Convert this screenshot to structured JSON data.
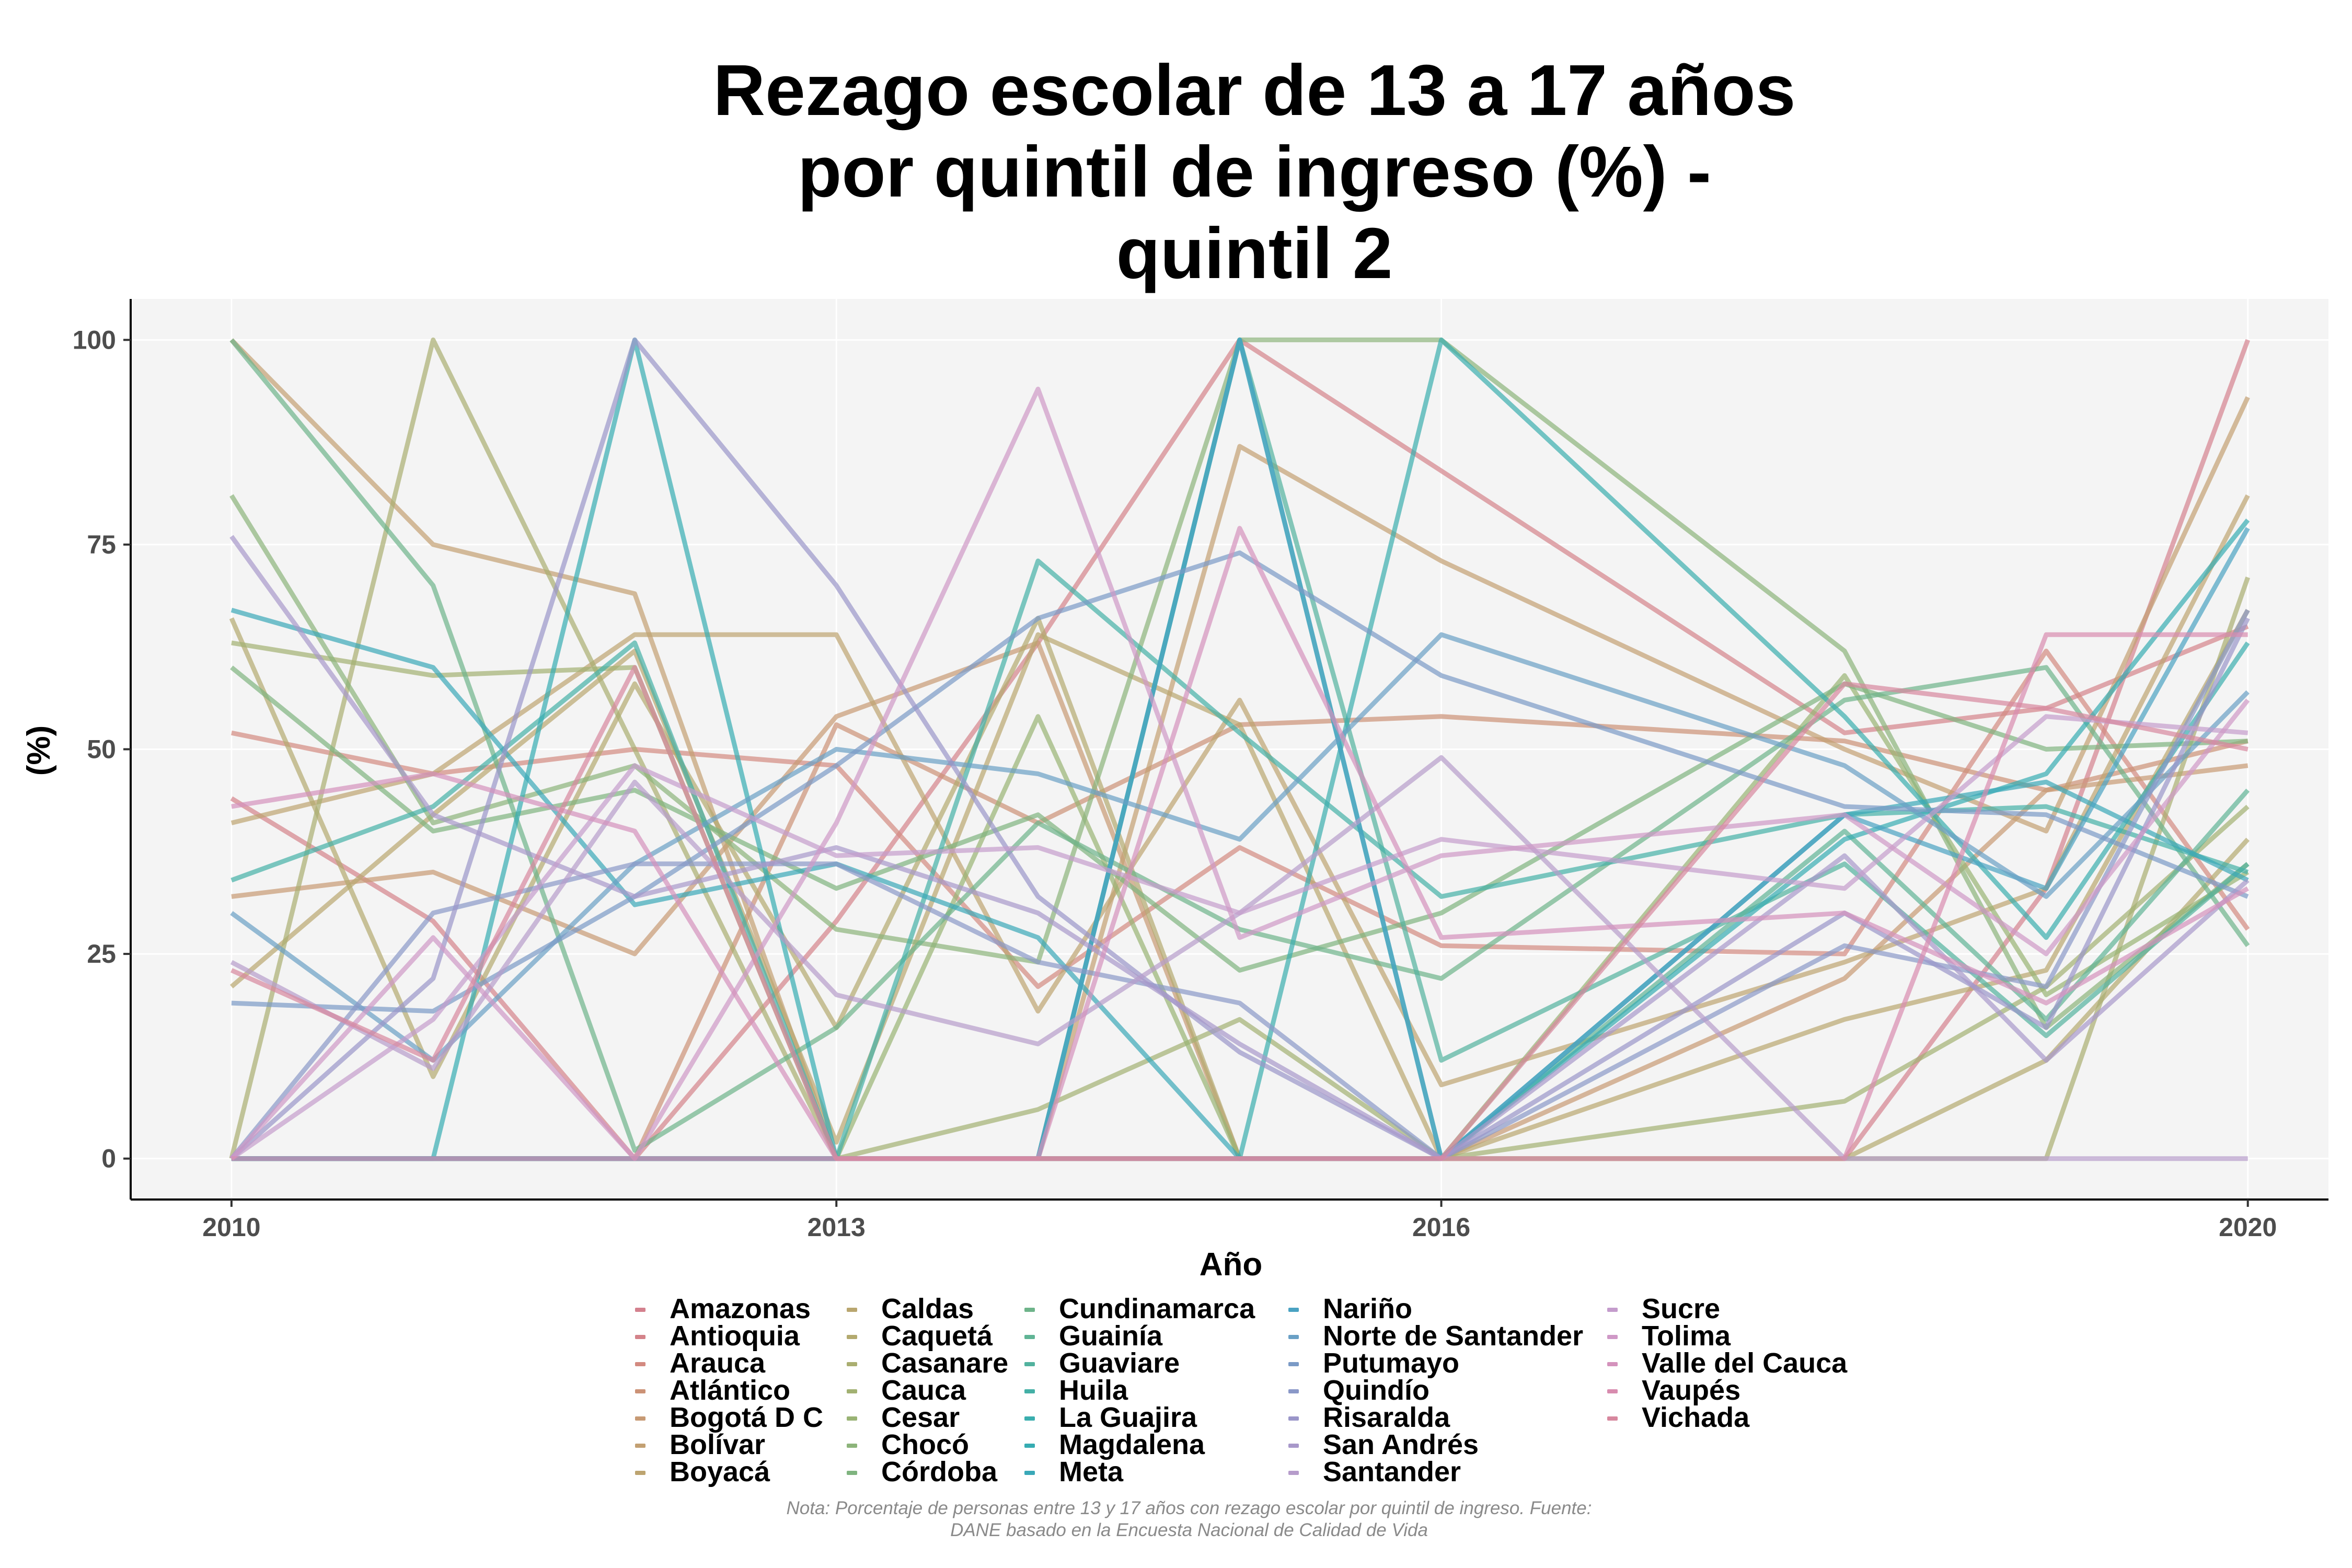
{
  "title_lines": [
    "Rezago escolar de 13 a 17 años",
    "por quintil de ingreso (%) -",
    "quintil 2"
  ],
  "note_lines": [
    "Nota: Porcentaje de personas entre 13 y 17 años con rezago escolar por quintil de ingreso. Fuente:",
    "DANE basado en la Encuesta Nacional de Calidad de Vida"
  ],
  "chart_data": {
    "type": "line",
    "title": "Rezago escolar de 13 a 17 años por quintil de ingreso (%) - quintil 2",
    "xlabel": "Año",
    "ylabel": "(%)",
    "xlim": [
      2009.5,
      2020.4
    ],
    "ylim": [
      -5,
      105
    ],
    "x_ticks": [
      2010,
      2013,
      2016,
      2020
    ],
    "y_ticks": [
      0,
      25,
      50,
      75,
      100
    ],
    "grid": true,
    "legend_position": "bottom",
    "x": [
      2010,
      2011,
      2012,
      2013,
      2014,
      2015,
      2016,
      2018,
      2019,
      2020
    ],
    "series": [
      {
        "name": "Amazonas",
        "color": "#d4818e",
        "values": [
          0,
          0,
          0,
          0,
          0,
          0,
          0,
          0,
          33,
          100
        ]
      },
      {
        "name": "Antioquia",
        "color": "#d4838a",
        "values": [
          44,
          29,
          0,
          29,
          63,
          100,
          84,
          52,
          55,
          65
        ]
      },
      {
        "name": "Arauca",
        "color": "#d38a80",
        "values": [
          52,
          47,
          50,
          48,
          21,
          38,
          26,
          25,
          62,
          28
        ]
      },
      {
        "name": "Atlántico",
        "color": "#cc9276",
        "values": [
          0,
          0,
          0,
          53,
          41,
          53,
          54,
          51,
          45,
          51
        ]
      },
      {
        "name": "Bogotá D C",
        "color": "#c79a74",
        "values": [
          32,
          35,
          25,
          54,
          63,
          0,
          0,
          22,
          45,
          48
        ]
      },
      {
        "name": "Bolívar",
        "color": "#c3a072",
        "values": [
          100,
          75,
          69,
          0,
          0,
          87,
          73,
          50,
          40,
          93
        ]
      },
      {
        "name": "Boyacá",
        "color": "#bda470",
        "values": [
          41,
          47,
          64,
          64,
          18,
          56,
          9,
          24,
          33,
          81
        ]
      },
      {
        "name": "Caldas",
        "color": "#b9a66f",
        "values": [
          21,
          42,
          62,
          2,
          64,
          53,
          0,
          17,
          23,
          67
        ]
      },
      {
        "name": "Caquetá",
        "color": "#b3aa6f",
        "values": [
          66,
          10,
          58,
          16,
          66,
          0,
          0,
          0,
          12,
          39
        ]
      },
      {
        "name": "Casanare",
        "color": "#aaae70",
        "values": [
          0,
          100,
          50,
          0,
          0,
          0,
          0,
          0,
          0,
          71
        ]
      },
      {
        "name": "Cauca",
        "color": "#a2b172",
        "values": [
          63,
          59,
          60,
          0,
          6,
          17,
          0,
          7,
          21,
          43
        ]
      },
      {
        "name": "Cesar",
        "color": "#99b374",
        "values": [
          0,
          0,
          0,
          0,
          54,
          0,
          0,
          59,
          20,
          35
        ]
      },
      {
        "name": "Chocó",
        "color": "#8cb47a",
        "values": [
          81,
          41,
          48,
          28,
          24,
          100,
          100,
          62,
          16,
          36
        ]
      },
      {
        "name": "Córdoba",
        "color": "#7fb47f",
        "values": [
          60,
          40,
          45,
          33,
          42,
          23,
          30,
          58,
          50,
          51
        ]
      },
      {
        "name": "Cundinamarca",
        "color": "#6eb48a",
        "values": [
          100,
          70,
          1,
          16,
          41,
          28,
          22,
          56,
          60,
          26
        ]
      },
      {
        "name": "Guainía",
        "color": "#60b495",
        "values": [
          0,
          0,
          0,
          0,
          0,
          0,
          0,
          40,
          17,
          45
        ]
      },
      {
        "name": "Guaviare",
        "color": "#52b29e",
        "values": [
          0,
          0,
          0,
          0,
          0,
          100,
          12,
          36,
          15,
          36
        ]
      },
      {
        "name": "Huila",
        "color": "#44b0a6",
        "values": [
          34,
          43,
          63,
          0,
          73,
          52,
          32,
          42,
          43,
          35
        ]
      },
      {
        "name": "La Guajira",
        "color": "#3aaeae",
        "values": [
          0,
          0,
          0,
          0,
          0,
          0,
          100,
          54,
          27,
          63
        ]
      },
      {
        "name": "Magdalena",
        "color": "#36acb2",
        "values": [
          0,
          0,
          100,
          0,
          0,
          100,
          0,
          39,
          47,
          78
        ]
      },
      {
        "name": "Meta",
        "color": "#3aa8b8",
        "values": [
          67,
          60,
          31,
          36,
          27,
          0,
          0,
          42,
          46,
          34
        ]
      },
      {
        "name": "Nariño",
        "color": "#4aa2c2",
        "values": [
          0,
          0,
          0,
          0,
          0,
          100,
          0,
          42,
          33,
          77
        ]
      },
      {
        "name": "Norte de Santander",
        "color": "#6aa0c5",
        "values": [
          30,
          12,
          36,
          50,
          47,
          39,
          64,
          48,
          32,
          57
        ]
      },
      {
        "name": "Putumayo",
        "color": "#7a9ac6",
        "values": [
          19,
          18,
          32,
          48,
          66,
          74,
          59,
          43,
          42,
          32
        ]
      },
      {
        "name": "Quindío",
        "color": "#8a98c8",
        "values": [
          0,
          30,
          36,
          36,
          24,
          19,
          0,
          26,
          21,
          67
        ]
      },
      {
        "name": "Risaralda",
        "color": "#9a96c9",
        "values": [
          0,
          22,
          100,
          70,
          32,
          13,
          0,
          30,
          16,
          66
        ]
      },
      {
        "name": "San Andrés",
        "color": "#a898ca",
        "values": [
          76,
          42,
          32,
          38,
          30,
          14,
          0,
          37,
          12,
          34
        ]
      },
      {
        "name": "Santander",
        "color": "#b69ccb",
        "values": [
          24,
          11,
          46,
          20,
          14,
          30,
          49,
          0,
          0,
          0
        ]
      },
      {
        "name": "Sucre",
        "color": "#c49ccc",
        "values": [
          0,
          17,
          48,
          37,
          38,
          30,
          39,
          33,
          54,
          52
        ]
      },
      {
        "name": "Tolima",
        "color": "#cf98c6",
        "values": [
          0,
          27,
          0,
          41,
          94,
          27,
          37,
          42,
          25,
          56
        ]
      },
      {
        "name": "Valle del Cauca",
        "color": "#d492bc",
        "values": [
          43,
          47,
          40,
          0,
          0,
          77,
          27,
          30,
          19,
          33
        ]
      },
      {
        "name": "Vaupés",
        "color": "#d88caf",
        "values": [
          0,
          0,
          0,
          0,
          0,
          0,
          0,
          0,
          64,
          64
        ]
      },
      {
        "name": "Vichada",
        "color": "#d7879e",
        "values": [
          23,
          12,
          60,
          0,
          0,
          0,
          0,
          58,
          55,
          50
        ]
      }
    ]
  }
}
